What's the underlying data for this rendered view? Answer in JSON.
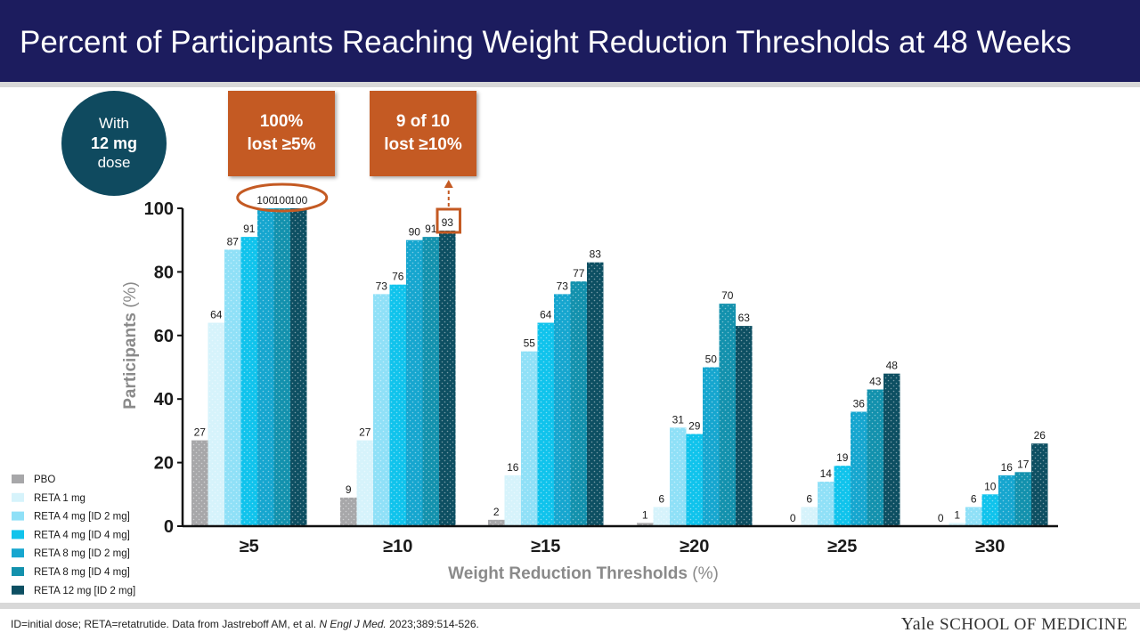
{
  "header": {
    "title": "Percent of Participants Reaching Weight Reduction Thresholds at 48 Weeks"
  },
  "dose_badge": {
    "line1": "With",
    "line2": "12 mg",
    "line3": "dose"
  },
  "callouts": [
    {
      "line1": "100%",
      "line2": "lost ≥5%"
    },
    {
      "line1": "9 of 10",
      "line2": "lost ≥10%"
    }
  ],
  "footnote": {
    "text": "ID=initial dose; RETA=retatrutide. Data from Jastreboff AM, et al. ",
    "journal": "N Engl J Med.",
    "citation": " 2023;389:514-526."
  },
  "logo": {
    "word1": "Yale",
    "word2": "SCHOOL OF MEDICINE"
  },
  "colors": {
    "header_bg": "#1c1c5e",
    "accent_orange": "#c45a23",
    "badge_teal": "#0f4a5f",
    "series": [
      "#a7a7a9",
      "#d6f3fb",
      "#8fe0f7",
      "#10c3ec",
      "#16a6cf",
      "#1391ad",
      "#0d4f62"
    ]
  },
  "chart_data": {
    "type": "bar",
    "xlabel": "Weight Reduction Thresholds",
    "xlabel_unit": "(%)",
    "ylabel": "Participants",
    "ylabel_unit": "(%)",
    "ylim": [
      0,
      100
    ],
    "yticks": [
      "0",
      "20",
      "40",
      "60",
      "80",
      "100"
    ],
    "grid": false,
    "legend_position": "bottom-left",
    "categories": [
      "≥5",
      "≥10",
      "≥15",
      "≥20",
      "≥25",
      "≥30"
    ],
    "series": [
      {
        "name": "PBO",
        "values": [
          27,
          9,
          2,
          1,
          0,
          0
        ]
      },
      {
        "name": "RETA 1 mg",
        "values": [
          64,
          27,
          16,
          6,
          6,
          1
        ]
      },
      {
        "name": "RETA 4 mg [ID 2 mg]",
        "values": [
          87,
          73,
          55,
          31,
          14,
          6
        ]
      },
      {
        "name": "RETA 4 mg [ID 4 mg]",
        "values": [
          91,
          76,
          64,
          29,
          19,
          10
        ]
      },
      {
        "name": "RETA 8 mg [ID 2 mg]",
        "values": [
          100,
          90,
          73,
          50,
          36,
          16
        ]
      },
      {
        "name": "RETA 8 mg [ID 4 mg]",
        "values": [
          100,
          91,
          77,
          70,
          43,
          17
        ]
      },
      {
        "name": "RETA 12 mg [ID 2 mg]",
        "values": [
          100,
          93,
          83,
          63,
          48,
          26
        ]
      }
    ],
    "annotations": {
      "circled_group": "≥5",
      "boxed_value": {
        "category": "≥10",
        "series": "RETA 12 mg [ID 2 mg]"
      }
    }
  }
}
